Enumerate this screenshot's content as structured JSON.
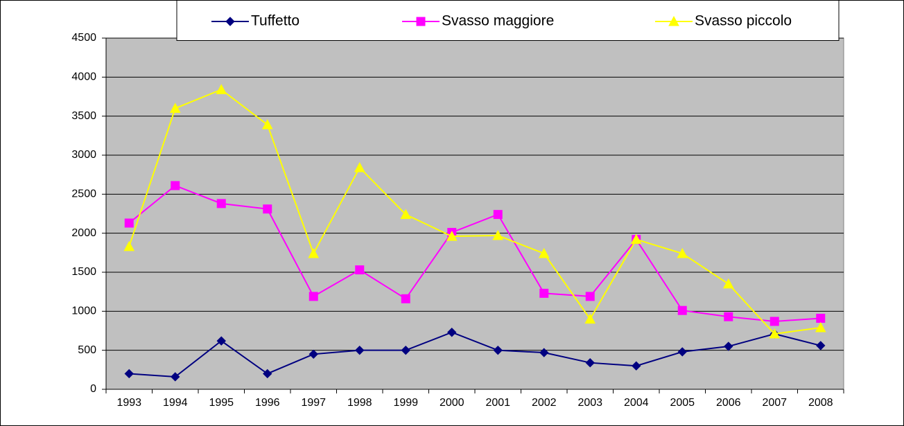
{
  "chart_data": {
    "type": "line",
    "categories": [
      "1993",
      "1994",
      "1995",
      "1996",
      "1997",
      "1998",
      "1999",
      "2000",
      "2001",
      "2002",
      "2003",
      "2004",
      "2005",
      "2006",
      "2007",
      "2008"
    ],
    "series": [
      {
        "name": "Tuffetto",
        "color": "#000080",
        "marker": "diamond",
        "values": [
          200,
          160,
          620,
          200,
          450,
          500,
          500,
          730,
          500,
          470,
          340,
          300,
          480,
          550,
          710,
          560
        ]
      },
      {
        "name": "Svasso maggiore",
        "color": "#ff00ff",
        "marker": "square",
        "values": [
          2130,
          2610,
          2380,
          2310,
          1190,
          1530,
          1160,
          2010,
          2240,
          1230,
          1190,
          1920,
          1010,
          930,
          870,
          910
        ]
      },
      {
        "name": "Svasso piccolo",
        "color": "#ffff00",
        "marker": "triangle",
        "values": [
          1830,
          3600,
          3840,
          3390,
          1740,
          2840,
          2240,
          1960,
          1970,
          1740,
          900,
          1920,
          1740,
          1350,
          710,
          790
        ]
      }
    ],
    "ylim": [
      0,
      4500
    ],
    "yticks": [
      0,
      500,
      1000,
      1500,
      2000,
      2500,
      3000,
      3500,
      4000,
      4500
    ],
    "grid": true,
    "plot_background": "#c0c0c0",
    "legend": "top"
  }
}
